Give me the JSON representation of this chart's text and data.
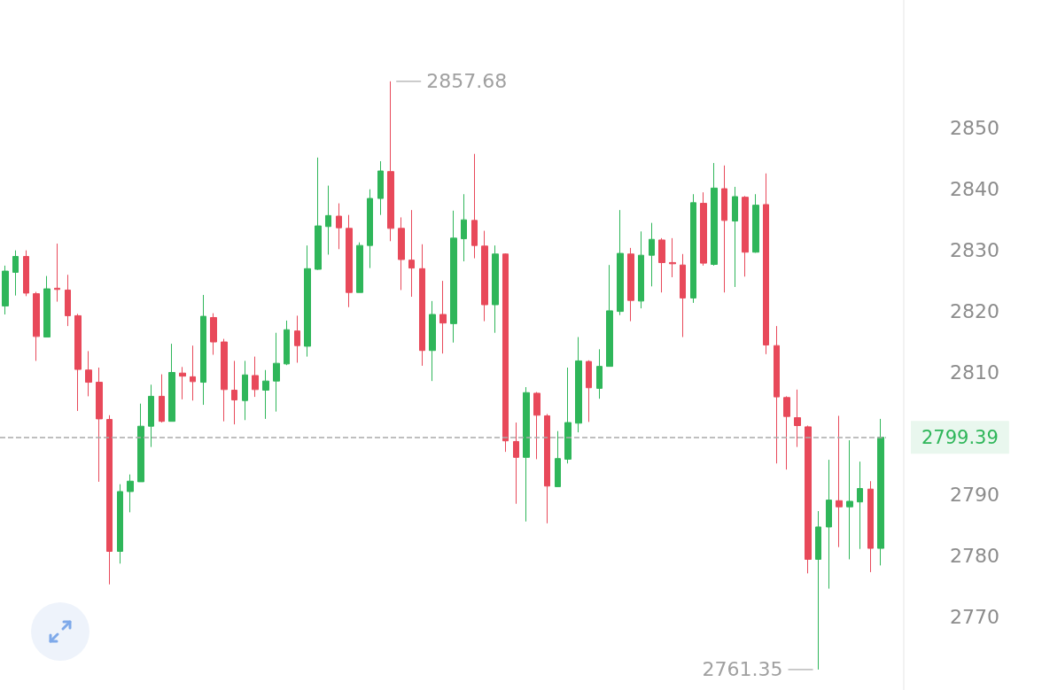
{
  "chart_data": {
    "type": "candlestick",
    "categories": [
      null,
      null,
      null,
      null,
      null,
      null,
      null,
      null,
      null,
      null,
      null,
      null,
      null,
      null,
      null,
      null,
      null,
      null,
      null,
      null,
      null,
      null,
      null,
      null,
      null,
      null,
      null,
      null,
      null,
      null,
      null,
      null,
      null,
      null,
      null,
      null,
      null,
      null,
      null,
      null,
      null,
      null,
      null,
      null,
      null,
      null,
      null,
      null,
      null,
      null,
      null,
      null,
      null,
      null,
      null,
      null,
      null,
      null,
      null,
      null,
      null,
      null,
      null,
      null,
      null,
      null,
      null,
      null,
      null,
      null,
      null,
      null,
      null,
      null,
      null,
      null,
      null,
      null,
      null,
      null,
      null,
      null,
      null,
      null,
      null
    ],
    "ohlc": [
      [
        2820.9,
        2827.5,
        2819.5,
        2826.6
      ],
      [
        2826.4,
        2830,
        2822.6,
        2829
      ],
      [
        2829,
        2830,
        2822.5,
        2823
      ],
      [
        2822.9,
        2823.2,
        2811.9,
        2815.9
      ],
      [
        2815.8,
        2825.8,
        2815.8,
        2823.7
      ],
      [
        2823.8,
        2831.1,
        2821.6,
        2823.6
      ],
      [
        2823.5,
        2826,
        2817.6,
        2819.3
      ],
      [
        2819.3,
        2819.6,
        2803.7,
        2810.5
      ],
      [
        2810.4,
        2813.5,
        2806.1,
        2808.4
      ],
      [
        2808.4,
        2810.8,
        2792.1,
        2802.4
      ],
      [
        2802.3,
        2803,
        2775.3,
        2780.7
      ],
      [
        2780.7,
        2791.7,
        2778.7,
        2790.5
      ],
      [
        2790.5,
        2793.3,
        2787.1,
        2792.2
      ],
      [
        2792.1,
        2804.9,
        2792.1,
        2801.2
      ],
      [
        2801.2,
        2808,
        2797.8,
        2806.1
      ],
      [
        2806.1,
        2809.7,
        2801.8,
        2802
      ],
      [
        2802,
        2814.7,
        2802,
        2810
      ],
      [
        2809.9,
        2810.9,
        2805.6,
        2809.4
      ],
      [
        2809.3,
        2814.4,
        2805.4,
        2808.5
      ],
      [
        2808.4,
        2822.7,
        2804.7,
        2819.2
      ],
      [
        2819,
        2819.7,
        2812.9,
        2815
      ],
      [
        2815,
        2815.5,
        2802,
        2807.2
      ],
      [
        2807.1,
        2811.9,
        2801.5,
        2805.5
      ],
      [
        2805.4,
        2811.9,
        2802.2,
        2809.6
      ],
      [
        2809.5,
        2812.6,
        2806,
        2807.2
      ],
      [
        2807.1,
        2810.4,
        2802.4,
        2808.6
      ],
      [
        2808.6,
        2816.5,
        2803.6,
        2811.5
      ],
      [
        2811.4,
        2818.5,
        2811.2,
        2817
      ],
      [
        2816.8,
        2819.3,
        2811.6,
        2814.4
      ],
      [
        2814.3,
        2830.8,
        2812.6,
        2827
      ],
      [
        2826.9,
        2845.2,
        2826.8,
        2834
      ],
      [
        2833.9,
        2840.6,
        2829.3,
        2835.7
      ],
      [
        2835.6,
        2837.7,
        2830.2,
        2833.7
      ],
      [
        2833.6,
        2835.8,
        2820.7,
        2823.1
      ],
      [
        2823.1,
        2831.3,
        2823.1,
        2830.8
      ],
      [
        2830.8,
        2840,
        2827.1,
        2838.5
      ],
      [
        2838.5,
        2844.6,
        2835.8,
        2843
      ],
      [
        2842.9,
        2857.68,
        2831.5,
        2833.6
      ],
      [
        2833.6,
        2835.4,
        2823.5,
        2828.5
      ],
      [
        2828.4,
        2836.6,
        2822.4,
        2827.1
      ],
      [
        2827,
        2831,
        2811.1,
        2813.6
      ],
      [
        2813.6,
        2821.7,
        2808.6,
        2819.5
      ],
      [
        2819.5,
        2825,
        2813.1,
        2818.1
      ],
      [
        2818,
        2836.5,
        2814.9,
        2832
      ],
      [
        2831.9,
        2839.2,
        2828.2,
        2835
      ],
      [
        2834.9,
        2845.8,
        2828.7,
        2830.8
      ],
      [
        2830.7,
        2833.2,
        2818.4,
        2821.1
      ],
      [
        2821.1,
        2830.8,
        2816.5,
        2829.4
      ],
      [
        2829.4,
        2829.5,
        2797,
        2798.8
      ],
      [
        2798.7,
        2801.8,
        2788.5,
        2796.1
      ],
      [
        2796.1,
        2807.6,
        2785.6,
        2806.7
      ],
      [
        2806.6,
        2806.8,
        2795.8,
        2803
      ],
      [
        2802.9,
        2803.2,
        2785.3,
        2791.4
      ],
      [
        2791.3,
        2800.4,
        2791.3,
        2795.9
      ],
      [
        2795.8,
        2810.8,
        2795.1,
        2801.8
      ],
      [
        2801.7,
        2815.8,
        2800.2,
        2811.9
      ],
      [
        2811.8,
        2812,
        2801.9,
        2807.5
      ],
      [
        2807.4,
        2813.8,
        2805.7,
        2811
      ],
      [
        2811,
        2827.6,
        2811,
        2820.1
      ],
      [
        2820,
        2836.6,
        2819.4,
        2829.5
      ],
      [
        2829.4,
        2830.4,
        2818.4,
        2821.8
      ],
      [
        2821.7,
        2833.1,
        2820.5,
        2829.2
      ],
      [
        2829.2,
        2834.5,
        2824.1,
        2831.8
      ],
      [
        2831.7,
        2832,
        2823.1,
        2828
      ],
      [
        2828,
        2832,
        2825.6,
        2827.8
      ],
      [
        2827.6,
        2829.4,
        2815.8,
        2822.2
      ],
      [
        2822.2,
        2839.2,
        2821.4,
        2837.8
      ],
      [
        2837.7,
        2839.5,
        2827.5,
        2827.9
      ],
      [
        2827.7,
        2844.3,
        2827.5,
        2840.2
      ],
      [
        2840.1,
        2843.9,
        2823.1,
        2834.9
      ],
      [
        2834.8,
        2840.4,
        2824,
        2838.8
      ],
      [
        2838.7,
        2838.9,
        2825.7,
        2829.7
      ],
      [
        2829.7,
        2839.2,
        2829.6,
        2837.4
      ],
      [
        2837.5,
        2842.6,
        2813,
        2814.5
      ],
      [
        2814.4,
        2817.6,
        2795.1,
        2806
      ],
      [
        2805.9,
        2806.1,
        2794.1,
        2802.8
      ],
      [
        2802.6,
        2807.2,
        2797.8,
        2801.3
      ],
      [
        2801.1,
        2801.3,
        2777.1,
        2779.4
      ],
      [
        2779.4,
        2787.3,
        2761.35,
        2784.7
      ],
      [
        2784.7,
        2795.7,
        2774.6,
        2789.1
      ],
      [
        2789,
        2802.9,
        2781.4,
        2788
      ],
      [
        2788,
        2798.9,
        2779.4,
        2788.9
      ],
      [
        2788.8,
        2795.4,
        2781.1,
        2791
      ],
      [
        2790.9,
        2792.2,
        2777.3,
        2781.2
      ],
      [
        2781.2,
        2802.4,
        2778.4,
        2799.39
      ]
    ],
    "colors": [
      "#2fb65a",
      "#2fb65a",
      "#e8495a",
      "#e8495a",
      "#2fb65a",
      "#e8495a",
      "#e8495a",
      "#e8495a",
      "#e8495a",
      "#e8495a",
      "#e8495a",
      "#2fb65a",
      "#2fb65a",
      "#2fb65a",
      "#2fb65a",
      "#e8495a",
      "#2fb65a",
      "#e8495a",
      "#e8495a",
      "#2fb65a",
      "#e8495a",
      "#e8495a",
      "#e8495a",
      "#2fb65a",
      "#e8495a",
      "#2fb65a",
      "#2fb65a",
      "#2fb65a",
      "#e8495a",
      "#2fb65a",
      "#2fb65a",
      "#2fb65a",
      "#e8495a",
      "#e8495a",
      "#2fb65a",
      "#2fb65a",
      "#2fb65a",
      "#e8495a",
      "#e8495a",
      "#e8495a",
      "#e8495a",
      "#2fb65a",
      "#e8495a",
      "#2fb65a",
      "#2fb65a",
      "#e8495a",
      "#e8495a",
      "#2fb65a",
      "#e8495a",
      "#e8495a",
      "#2fb65a",
      "#e8495a",
      "#e8495a",
      "#2fb65a",
      "#2fb65a",
      "#2fb65a",
      "#e8495a",
      "#2fb65a",
      "#2fb65a",
      "#2fb65a",
      "#e8495a",
      "#2fb65a",
      "#2fb65a",
      "#e8495a",
      "#e8495a",
      "#e8495a",
      "#2fb65a",
      "#e8495a",
      "#2fb65a",
      "#e8495a",
      "#2fb65a",
      "#e8495a",
      "#2fb65a",
      "#e8495a",
      "#e8495a",
      "#e8495a",
      "#e8495a",
      "#e8495a",
      "#2fb65a",
      "#2fb65a",
      "#e8495a",
      "#2fb65a",
      "#2fb65a",
      "#e8495a",
      "#2fb65a"
    ],
    "ylim": [
      2758,
      2871
    ],
    "yticks": [
      2770,
      2780,
      2790,
      2810,
      2820,
      2830,
      2840,
      2850
    ],
    "tick_labels": "y",
    "ref_lines": [
      {
        "axis": "y",
        "value": 2799.39,
        "label": "2799.39",
        "color": "#aaaaaa",
        "line_style": "dashed"
      }
    ],
    "annotations": [
      "2857.68",
      "2761.35"
    ]
  }
}
